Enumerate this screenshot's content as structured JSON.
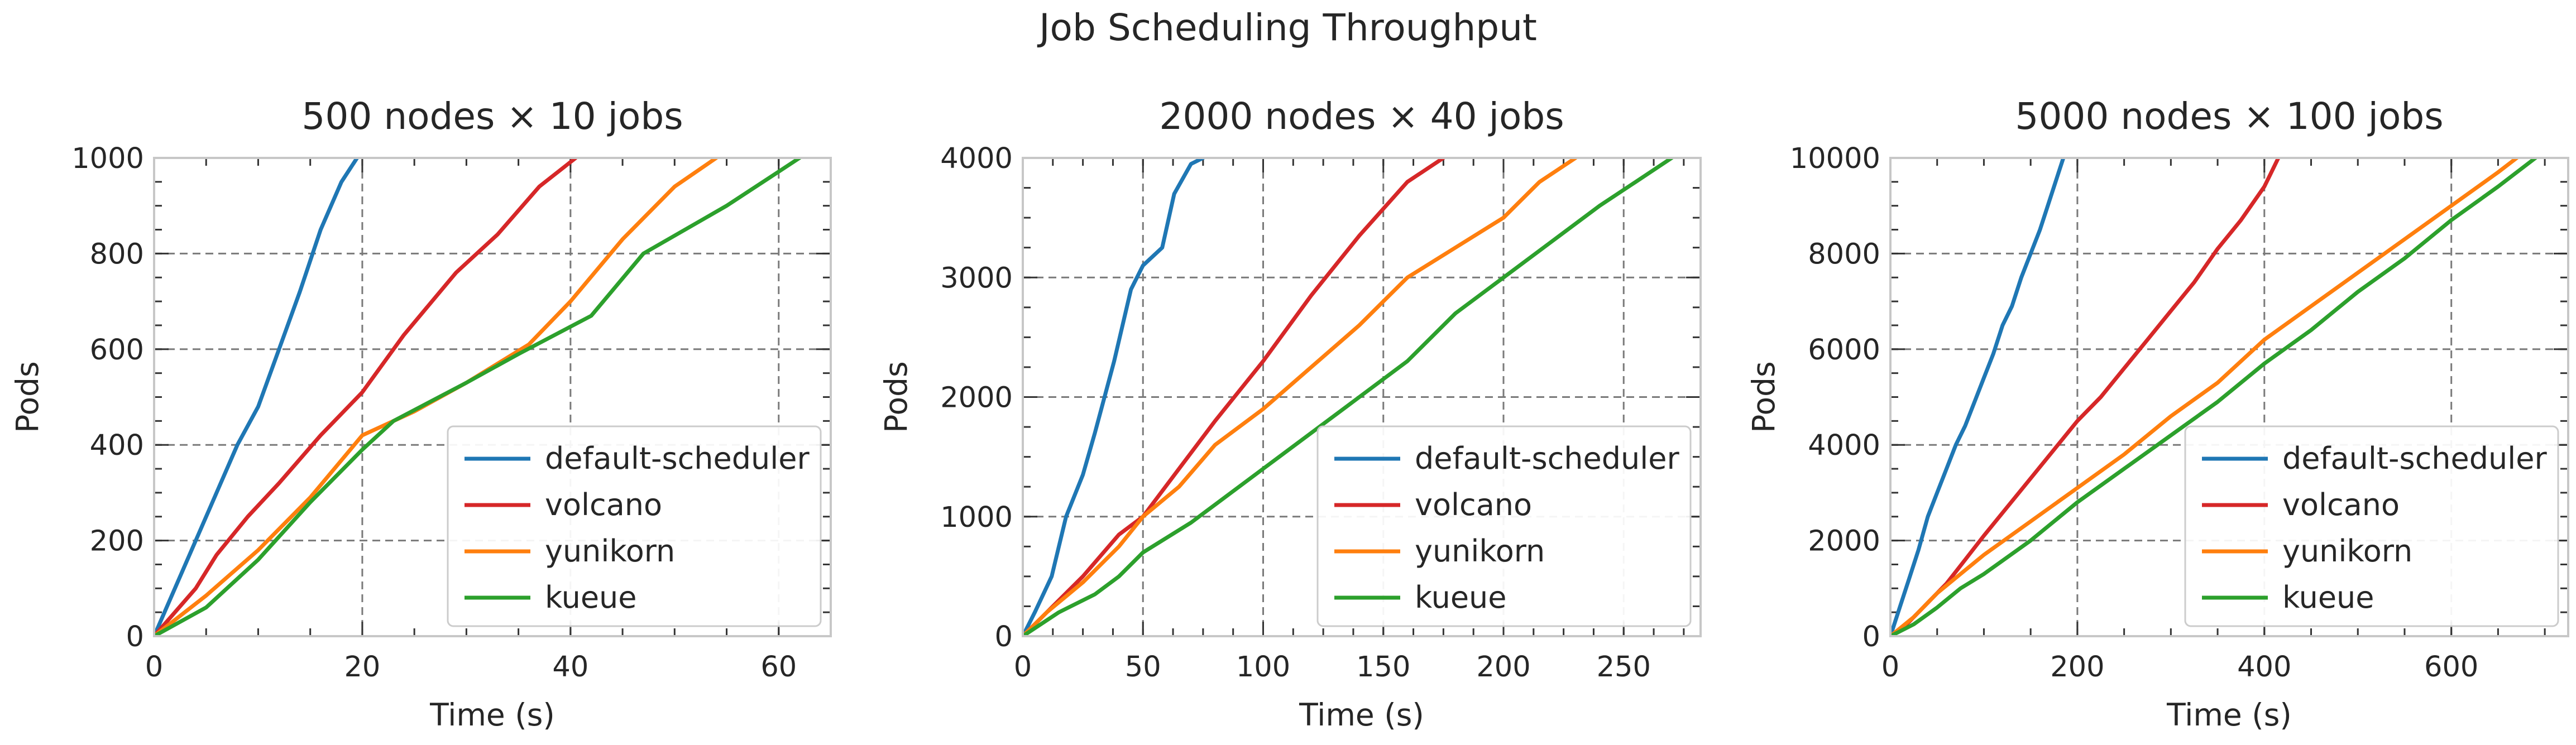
{
  "figure": {
    "suptitle": "Job Scheduling Throughput"
  },
  "chart_data": [
    {
      "type": "line",
      "title": "500 nodes × 10 jobs",
      "xlabel": "Time (s)",
      "ylabel": "Pods",
      "xlim": [
        0,
        65
      ],
      "ylim": [
        0,
        1000
      ],
      "xticks": [
        0,
        20,
        40,
        60
      ],
      "yticks": [
        0,
        200,
        400,
        600,
        800,
        1000
      ],
      "grid": true,
      "legend": "lower-right",
      "series": [
        {
          "name": "default-scheduler",
          "color": "#1f77b4",
          "x": [
            0,
            2,
            4,
            6,
            8,
            10,
            12,
            14,
            16,
            18,
            19.5
          ],
          "y": [
            0,
            100,
            200,
            300,
            400,
            480,
            600,
            720,
            850,
            950,
            1000
          ]
        },
        {
          "name": "volcano",
          "color": "#d62728",
          "x": [
            0,
            2,
            4,
            6,
            9,
            12,
            16,
            20,
            24,
            29,
            33,
            37,
            40.5
          ],
          "y": [
            0,
            50,
            100,
            170,
            250,
            320,
            420,
            510,
            630,
            760,
            840,
            940,
            1000
          ]
        },
        {
          "name": "yunikorn",
          "color": "#ff7f0e",
          "x": [
            0,
            5,
            10,
            15,
            20,
            25,
            30,
            36,
            40,
            45,
            50,
            54
          ],
          "y": [
            0,
            85,
            180,
            290,
            420,
            470,
            530,
            610,
            700,
            830,
            940,
            1000
          ]
        },
        {
          "name": "kueue",
          "color": "#2ca02c",
          "x": [
            0,
            5,
            10,
            15,
            20,
            23,
            30,
            35,
            42,
            47,
            55,
            62
          ],
          "y": [
            0,
            60,
            160,
            280,
            390,
            450,
            530,
            590,
            670,
            800,
            900,
            1000
          ]
        }
      ]
    },
    {
      "type": "line",
      "title": "2000 nodes × 40 jobs",
      "xlabel": "Time (s)",
      "ylabel": "Pods",
      "xlim": [
        0,
        282
      ],
      "ylim": [
        0,
        4000
      ],
      "xticks": [
        0,
        50,
        100,
        150,
        200,
        250
      ],
      "yticks": [
        0,
        1000,
        2000,
        3000,
        4000
      ],
      "grid": true,
      "legend": "lower-right",
      "series": [
        {
          "name": "default-scheduler",
          "color": "#1f77b4",
          "x": [
            0,
            5,
            12,
            18,
            25,
            30,
            38,
            45,
            50,
            58,
            63,
            70,
            75
          ],
          "y": [
            0,
            200,
            500,
            1000,
            1350,
            1700,
            2300,
            2900,
            3100,
            3250,
            3700,
            3950,
            4000
          ]
        },
        {
          "name": "volcano",
          "color": "#d62728",
          "x": [
            0,
            10,
            25,
            40,
            50,
            65,
            80,
            100,
            120,
            140,
            160,
            175
          ],
          "y": [
            0,
            200,
            500,
            850,
            1000,
            1400,
            1800,
            2300,
            2850,
            3350,
            3800,
            4000
          ]
        },
        {
          "name": "yunikorn",
          "color": "#ff7f0e",
          "x": [
            0,
            10,
            25,
            40,
            50,
            65,
            80,
            100,
            120,
            140,
            160,
            180,
            200,
            215,
            230
          ],
          "y": [
            0,
            200,
            450,
            750,
            1000,
            1250,
            1600,
            1900,
            2250,
            2600,
            3000,
            3250,
            3500,
            3800,
            4000
          ]
        },
        {
          "name": "kueue",
          "color": "#2ca02c",
          "x": [
            0,
            15,
            30,
            40,
            50,
            70,
            80,
            100,
            120,
            140,
            160,
            180,
            200,
            220,
            240,
            255,
            270
          ],
          "y": [
            0,
            200,
            350,
            500,
            700,
            950,
            1100,
            1400,
            1700,
            2000,
            2300,
            2700,
            3000,
            3300,
            3600,
            3800,
            4000
          ]
        }
      ]
    },
    {
      "type": "line",
      "title": "5000 nodes × 100 jobs",
      "xlabel": "Time (s)",
      "ylabel": "Pods",
      "xlim": [
        0,
        725
      ],
      "ylim": [
        0,
        10000
      ],
      "xticks": [
        0,
        200,
        400,
        600
      ],
      "yticks": [
        0,
        2000,
        4000,
        6000,
        8000,
        10000
      ],
      "grid": true,
      "legend": "lower-right",
      "series": [
        {
          "name": "default-scheduler",
          "color": "#1f77b4",
          "x": [
            0,
            10,
            20,
            30,
            40,
            50,
            60,
            70,
            80,
            90,
            100,
            110,
            120,
            130,
            140,
            150,
            160,
            170,
            180,
            185
          ],
          "y": [
            0,
            600,
            1200,
            1800,
            2500,
            3000,
            3500,
            4000,
            4400,
            4900,
            5400,
            5900,
            6500,
            6900,
            7500,
            8000,
            8500,
            9100,
            9700,
            10000
          ]
        },
        {
          "name": "volcano",
          "color": "#d62728",
          "x": [
            0,
            20,
            40,
            60,
            80,
            100,
            125,
            150,
            175,
            200,
            225,
            250,
            275,
            300,
            325,
            350,
            375,
            400,
            415
          ],
          "y": [
            0,
            300,
            700,
            1100,
            1600,
            2100,
            2700,
            3300,
            3900,
            4500,
            5000,
            5600,
            6200,
            6800,
            7400,
            8100,
            8700,
            9400,
            10000
          ]
        },
        {
          "name": "yunikorn",
          "color": "#ff7f0e",
          "x": [
            0,
            25,
            50,
            75,
            100,
            150,
            200,
            250,
            300,
            350,
            400,
            450,
            500,
            550,
            600,
            650,
            670
          ],
          "y": [
            0,
            400,
            900,
            1300,
            1700,
            2400,
            3100,
            3800,
            4600,
            5300,
            6200,
            6900,
            7600,
            8300,
            9000,
            9700,
            10000
          ]
        },
        {
          "name": "kueue",
          "color": "#2ca02c",
          "x": [
            0,
            25,
            50,
            75,
            100,
            150,
            200,
            250,
            300,
            350,
            400,
            450,
            500,
            550,
            600,
            650,
            690
          ],
          "y": [
            0,
            250,
            600,
            1000,
            1300,
            2000,
            2800,
            3500,
            4200,
            4900,
            5700,
            6400,
            7200,
            7900,
            8700,
            9400,
            10000
          ]
        }
      ]
    }
  ]
}
